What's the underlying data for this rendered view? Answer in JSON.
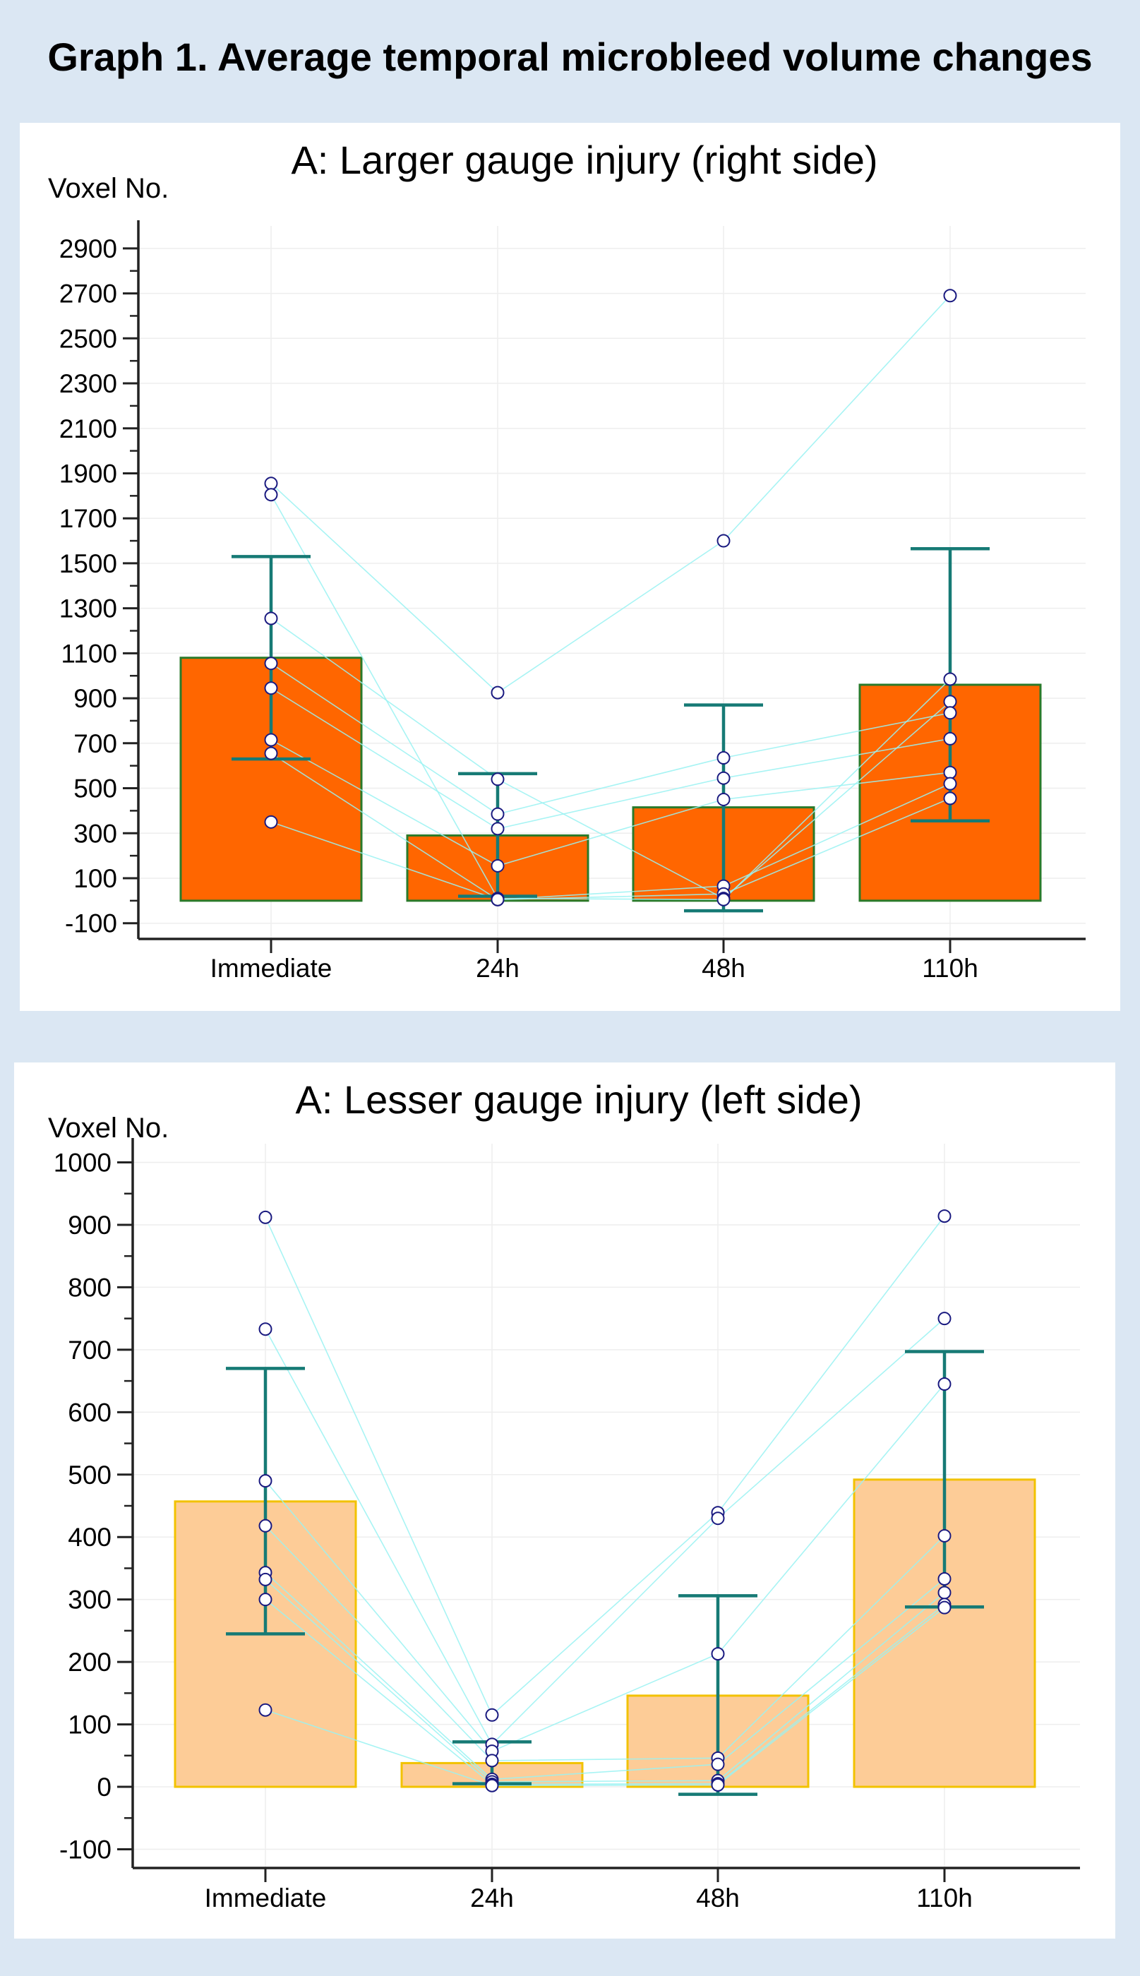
{
  "page_title": "Graph 1. Average temporal microbleed volume changes",
  "colors": {
    "background": "#dbe7f3",
    "panel": "#ffffff",
    "bar_a_fill": "#ff6600",
    "bar_a_stroke": "#2a7a2a",
    "bar_b_fill": "#fdcc97",
    "bar_b_stroke": "#f2c200",
    "error_bar": "#167a75",
    "point_stroke": "#1a1a80",
    "line": "#99f2f2",
    "grid": "#eeeeee"
  },
  "chart_data": [
    {
      "type": "bar",
      "title": "A: Larger gauge injury (right side)",
      "xlabel": "",
      "ylabel": "Voxel No.",
      "ylim": [
        -170,
        3000
      ],
      "yticks": [
        -100,
        100,
        300,
        500,
        700,
        900,
        1100,
        1300,
        1500,
        1700,
        1900,
        2100,
        2300,
        2500,
        2700,
        2900
      ],
      "categories": [
        "Immediate",
        "24h",
        "48h",
        "110h"
      ],
      "values": [
        1080,
        290,
        415,
        960
      ],
      "error_low": [
        630,
        20,
        -45,
        355
      ],
      "error_high": [
        1530,
        565,
        870,
        1565
      ],
      "points": [
        [
          1855,
          1805,
          1255,
          1055,
          945,
          715,
          655,
          350
        ],
        [
          925,
          540,
          385,
          320,
          155,
          10,
          5,
          5
        ],
        [
          1600,
          635,
          545,
          450,
          65,
          30,
          10,
          5
        ],
        [
          2690,
          985,
          885,
          835,
          720,
          570,
          520,
          455
        ]
      ],
      "subject_lines": [
        [
          1855,
          925,
          1600,
          2690
        ],
        [
          1805,
          10,
          5,
          985
        ],
        [
          1255,
          540,
          10,
          885
        ],
        [
          1055,
          385,
          635,
          835
        ],
        [
          945,
          320,
          545,
          720
        ],
        [
          715,
          155,
          450,
          570
        ],
        [
          655,
          5,
          65,
          520
        ],
        [
          350,
          5,
          30,
          455
        ]
      ]
    },
    {
      "type": "bar",
      "title": "A: Lesser gauge injury (left side)",
      "xlabel": "",
      "ylabel": "Voxel No.",
      "ylim": [
        -130,
        1030
      ],
      "yticks": [
        -100,
        0,
        100,
        200,
        300,
        400,
        500,
        600,
        700,
        800,
        900,
        1000
      ],
      "categories": [
        "Immediate",
        "24h",
        "48h",
        "110h"
      ],
      "values": [
        457,
        38,
        146,
        492
      ],
      "error_low": [
        245,
        5,
        -12,
        288
      ],
      "error_high": [
        670,
        72,
        306,
        697
      ],
      "points": [
        [
          912,
          733,
          490,
          418,
          343,
          332,
          300,
          123
        ],
        [
          115,
          68,
          57,
          42,
          12,
          8,
          4,
          2
        ],
        [
          439,
          430,
          213,
          46,
          36,
          10,
          5,
          3
        ],
        [
          914,
          750,
          645,
          402,
          333,
          311,
          292,
          287
        ]
      ],
      "subject_lines": [
        [
          912,
          115,
          439,
          914
        ],
        [
          733,
          68,
          430,
          750
        ],
        [
          490,
          57,
          213,
          645
        ],
        [
          418,
          42,
          46,
          402
        ],
        [
          343,
          12,
          36,
          333
        ],
        [
          332,
          8,
          10,
          311
        ],
        [
          300,
          4,
          5,
          292
        ],
        [
          123,
          2,
          3,
          287
        ]
      ]
    }
  ]
}
